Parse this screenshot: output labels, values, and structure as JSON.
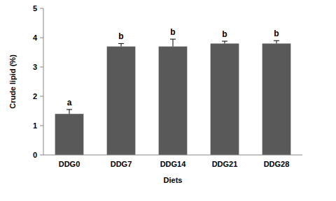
{
  "chart_data": {
    "type": "bar",
    "x_label": "Diets",
    "y_label": "Crude lipid (%)",
    "categories": [
      "DDG0",
      "DDG7",
      "DDG14",
      "DDG21",
      "DDG28"
    ],
    "values": [
      1.4,
      3.7,
      3.7,
      3.8,
      3.8
    ],
    "errors": [
      0.15,
      0.1,
      0.25,
      0.08,
      0.1
    ],
    "annotations": [
      "a",
      "b",
      "b",
      "b",
      "b"
    ],
    "color": "#595959",
    "ylim": [
      0,
      5
    ],
    "yticks": [
      0,
      1,
      2,
      3,
      4,
      5
    ],
    "grid": false
  }
}
